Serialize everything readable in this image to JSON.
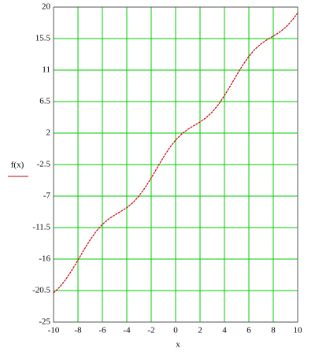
{
  "chart_data": {
    "type": "line",
    "x_label": "x",
    "y_label": "f(x)",
    "x": [
      -10,
      -9.5,
      -9,
      -8.5,
      -8,
      -7.5,
      -7,
      -6.5,
      -6,
      -5.5,
      -5,
      -4.5,
      -4,
      -3.5,
      -3,
      -2.5,
      -2,
      -1.5,
      -1,
      -0.5,
      0,
      0.5,
      1,
      1.5,
      2,
      2.5,
      3,
      3.5,
      4,
      4.5,
      5,
      5.5,
      6,
      6.5,
      7,
      7.5,
      8,
      8.5,
      9,
      9.5,
      10
    ],
    "series": [
      {
        "color": "#cc0000",
        "values": [
          -20.84,
          -20.0,
          -18.91,
          -17.6,
          -16.15,
          -14.65,
          -13.25,
          -12.02,
          -11.04,
          -10.29,
          -9.72,
          -9.21,
          -8.65,
          -7.94,
          -6.99,
          -5.8,
          -4.42,
          -2.93,
          -1.46,
          -0.12,
          1,
          1.88,
          2.54,
          3.07,
          3.58,
          4.2,
          5.01,
          6.06,
          7.35,
          8.79,
          10.28,
          11.71,
          12.96,
          13.98,
          14.75,
          15.35,
          15.85,
          16.4,
          17.09,
          18.0,
          19.16
        ]
      }
    ],
    "xlim": [
      -10,
      10
    ],
    "xticks": [
      -10,
      -8,
      -6,
      -4,
      -2,
      0,
      2,
      4,
      6,
      8,
      10
    ],
    "ylim": [
      -25,
      20
    ],
    "yticks": [
      20,
      15.5,
      11,
      6.5,
      2,
      -2.5,
      -7,
      -11.5,
      -16,
      -20.5,
      -25
    ],
    "grid": true,
    "grid_color": "#00cc00"
  }
}
